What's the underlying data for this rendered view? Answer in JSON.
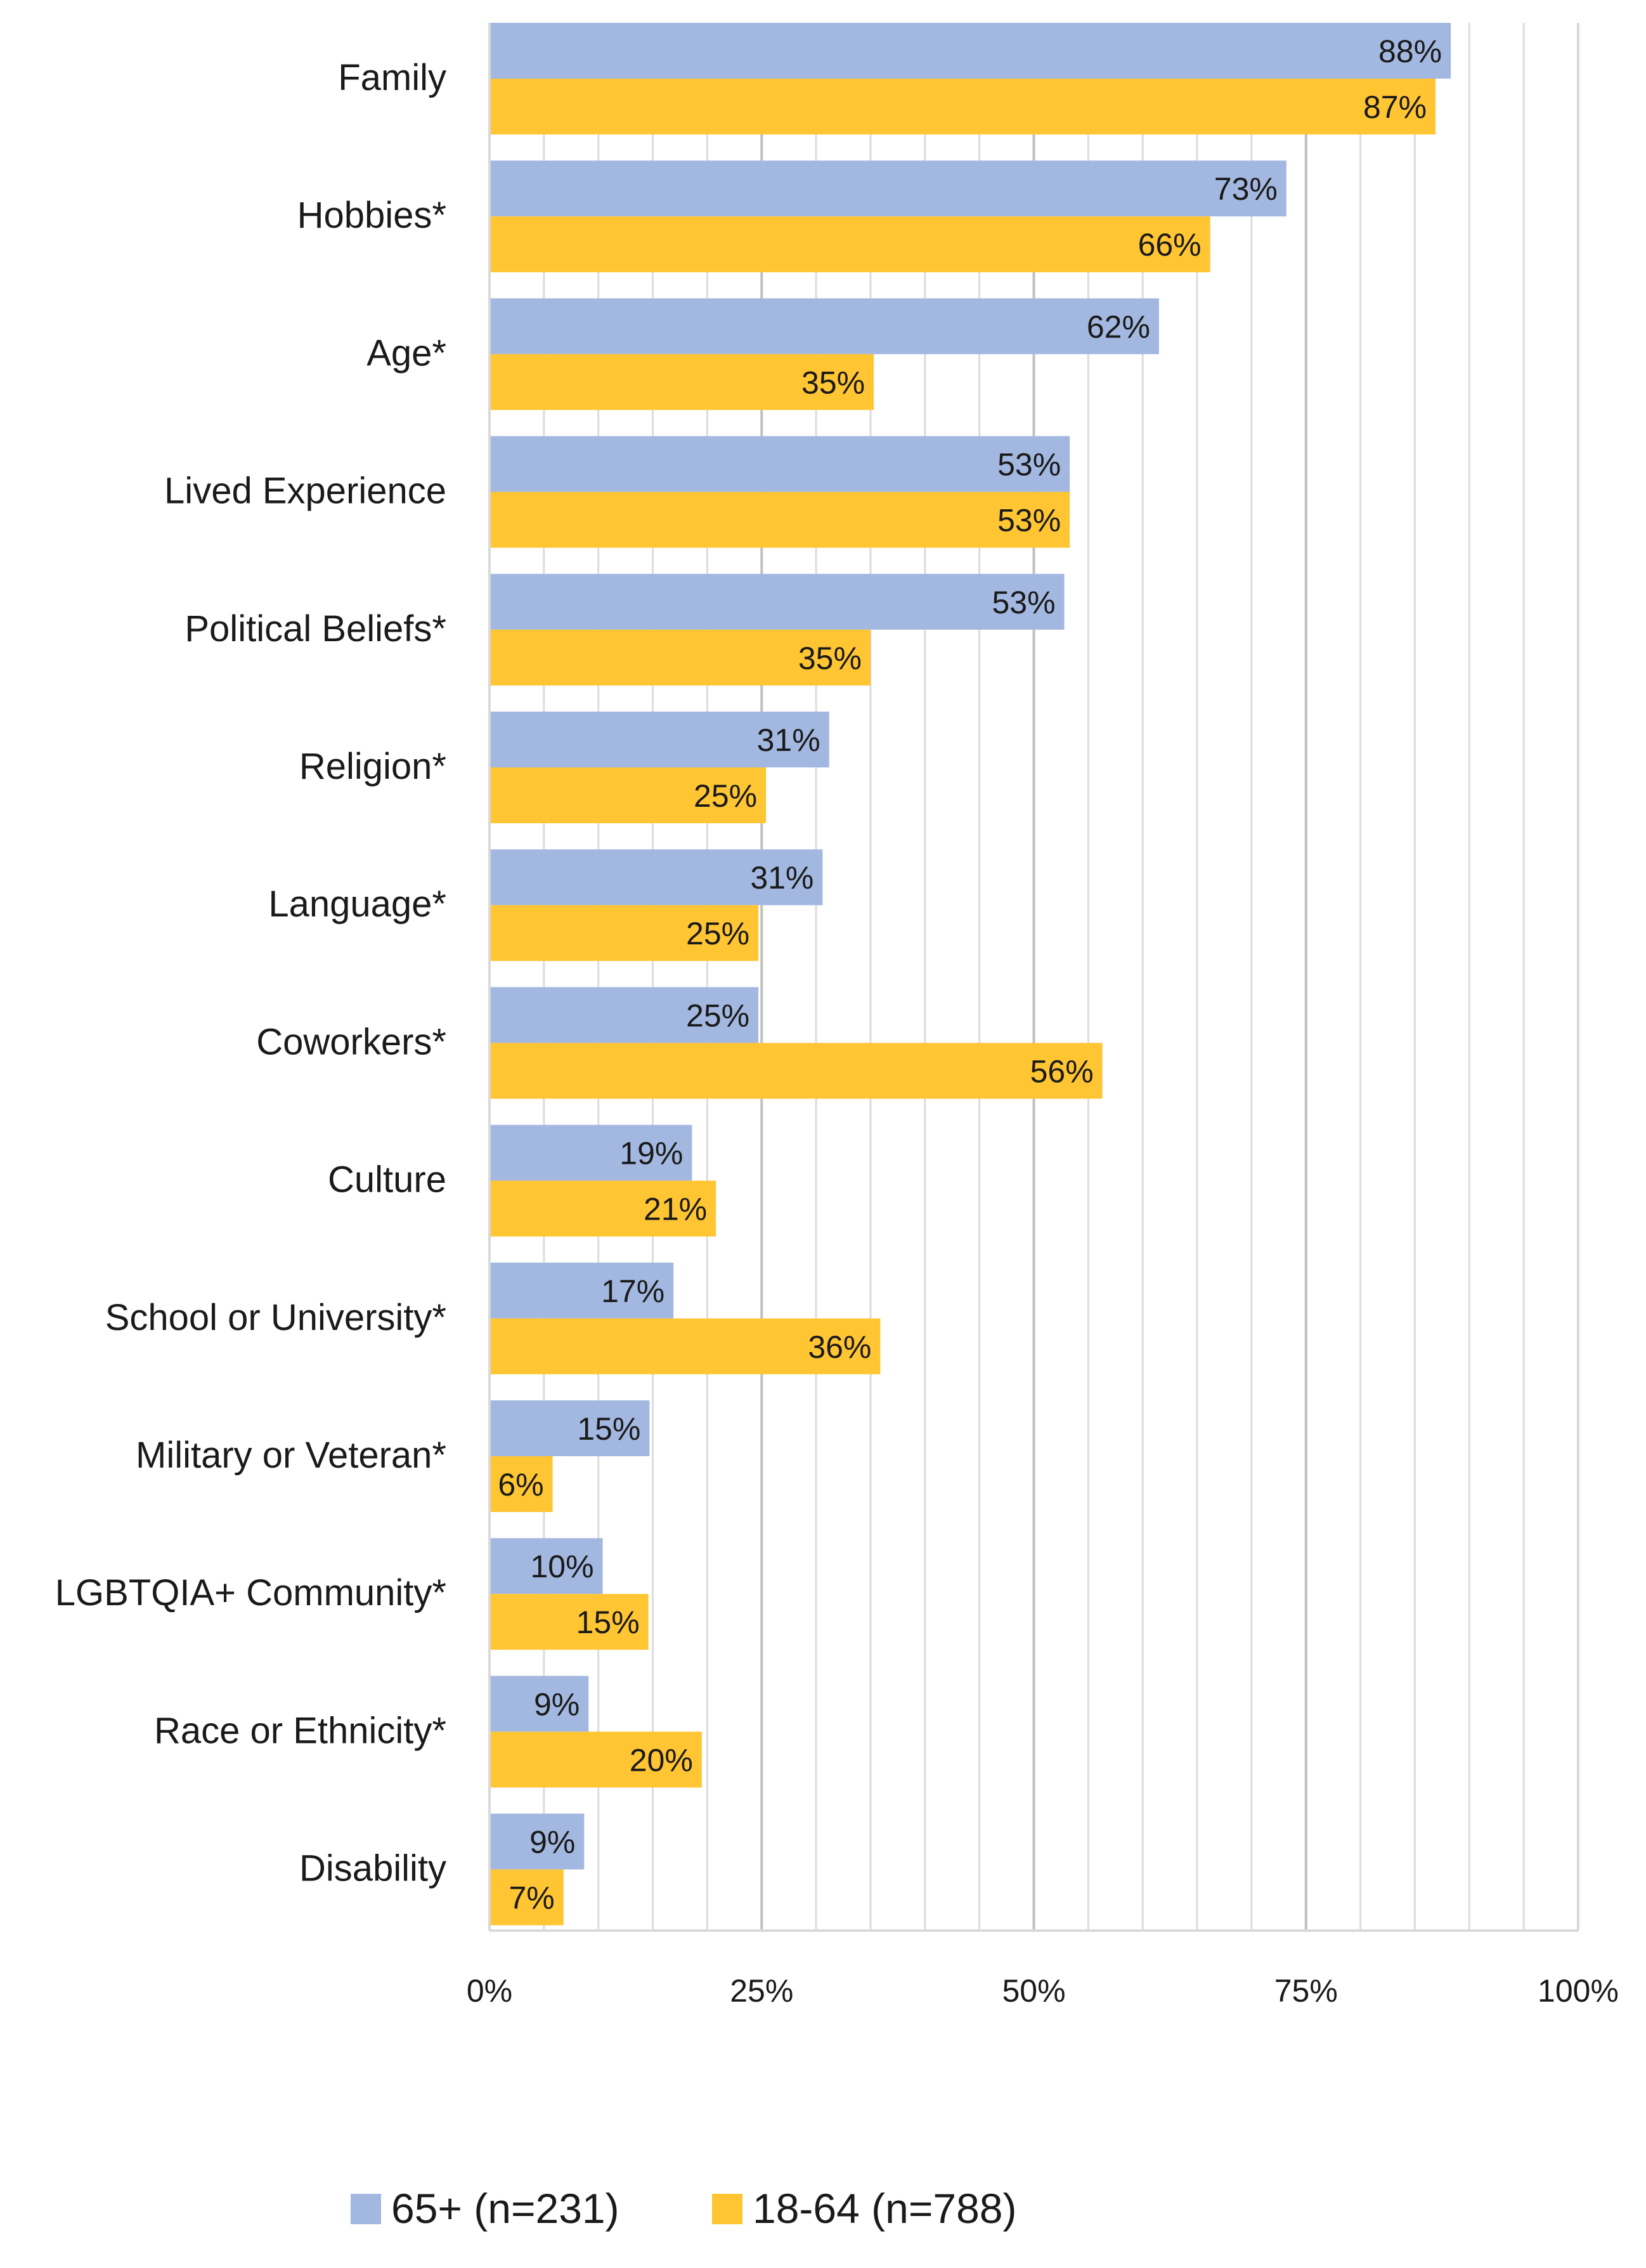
{
  "chart_data": {
    "type": "bar",
    "orientation": "horizontal",
    "title": "",
    "xlabel": "",
    "ylabel": "",
    "xlim": [
      0,
      100
    ],
    "x_ticks": [
      "0%",
      "25%",
      "50%",
      "75%",
      "100%"
    ],
    "x_tick_values": [
      0,
      25,
      50,
      75,
      100
    ],
    "minor_gridline_step": 5,
    "grid": true,
    "legend_position": "bottom",
    "categories": [
      "Family",
      "Hobbies*",
      "Age*",
      "Lived Experience",
      "Political Beliefs*",
      "Religion*",
      "Language*",
      "Coworkers*",
      "Culture",
      "School or University*",
      "Military or Veteran*",
      "LGBTQIA+ Community*",
      "Race or Ethnicity*",
      "Disability"
    ],
    "series": [
      {
        "name": "65+ (n=231)",
        "color": "#A3B8E0",
        "values": [
          88.3,
          73.2,
          61.5,
          53.3,
          52.8,
          31.2,
          30.6,
          24.7,
          18.6,
          16.9,
          14.7,
          10.4,
          9.1,
          8.7
        ],
        "labels": [
          "88%",
          "73%",
          "62%",
          "53%",
          "53%",
          "31%",
          "31%",
          "25%",
          "19%",
          "17%",
          "15%",
          "10%",
          "9%",
          "9%"
        ]
      },
      {
        "name": "18-64 (n=788)",
        "color": "#FFC533",
        "values": [
          86.9,
          66.2,
          35.3,
          53.3,
          35.0,
          25.4,
          24.7,
          56.3,
          20.8,
          35.9,
          5.8,
          14.6,
          19.5,
          6.8
        ],
        "labels": [
          "87%",
          "66%",
          "35%",
          "53%",
          "35%",
          "25%",
          "25%",
          "56%",
          "21%",
          "36%",
          "6%",
          "15%",
          "20%",
          "7%"
        ]
      }
    ]
  }
}
